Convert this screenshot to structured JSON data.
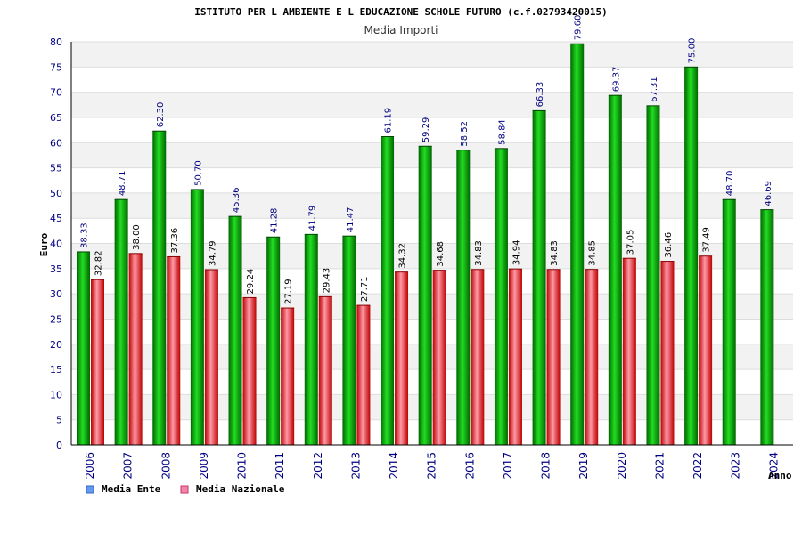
{
  "chart_data": {
    "type": "bar",
    "title": "ISTITUTO PER L AMBIENTE E L EDUCAZIONE SCHOLE FUTURO (c.f.02793420015)",
    "subtitle": "Media Importi",
    "ylabel": "Euro",
    "xlabel": "Anno",
    "ylim": [
      0,
      80
    ],
    "yticks": [
      "0",
      "5",
      "10",
      "15",
      "20",
      "25",
      "30",
      "35",
      "40",
      "45",
      "50",
      "55",
      "60",
      "65",
      "70",
      "75",
      "80"
    ],
    "categories": [
      "2006",
      "2007",
      "2008",
      "2009",
      "2010",
      "2011",
      "2012",
      "2013",
      "2014",
      "2015",
      "2016",
      "2017",
      "2018",
      "2019",
      "2020",
      "2021",
      "2022",
      "2023",
      "2024"
    ],
    "series": [
      {
        "name": "Media Ente",
        "color": "#22aa22",
        "values": [
          38.33,
          48.71,
          62.3,
          50.7,
          45.36,
          41.28,
          41.79,
          41.47,
          61.19,
          59.29,
          58.52,
          58.84,
          66.33,
          79.6,
          69.37,
          67.31,
          75.0,
          48.7,
          46.69
        ],
        "labels": [
          "38.33",
          "48.71",
          "62.30",
          "50.70",
          "45.36",
          "41.28",
          "41.79",
          "41.47",
          "61.19",
          "59.29",
          "58.52",
          "58.84",
          "66.33",
          "79.60",
          "69.37",
          "67.31",
          "75.00",
          "48.70",
          "46.69"
        ]
      },
      {
        "name": "Media Nazionale",
        "color": "#dd3344",
        "values": [
          32.82,
          38.0,
          37.36,
          34.79,
          29.24,
          27.19,
          29.43,
          27.71,
          34.32,
          34.68,
          34.83,
          34.94,
          34.83,
          34.85,
          37.05,
          36.46,
          37.49,
          null,
          null
        ],
        "labels": [
          "32.82",
          "38.00",
          "37.36",
          "34.79",
          "29.24",
          "27.19",
          "29.43",
          "27.71",
          "34.32",
          "34.68",
          "34.83",
          "34.94",
          "34.83",
          "34.85",
          "37.05",
          "36.46",
          "37.49",
          null,
          null
        ]
      }
    ],
    "grid": true,
    "legend": {
      "position": "bottom-left",
      "items": [
        {
          "label": "Media Ente",
          "color": "#6699ee"
        },
        {
          "label": "Media Nazionale",
          "color": "#ee88aa"
        }
      ]
    }
  }
}
